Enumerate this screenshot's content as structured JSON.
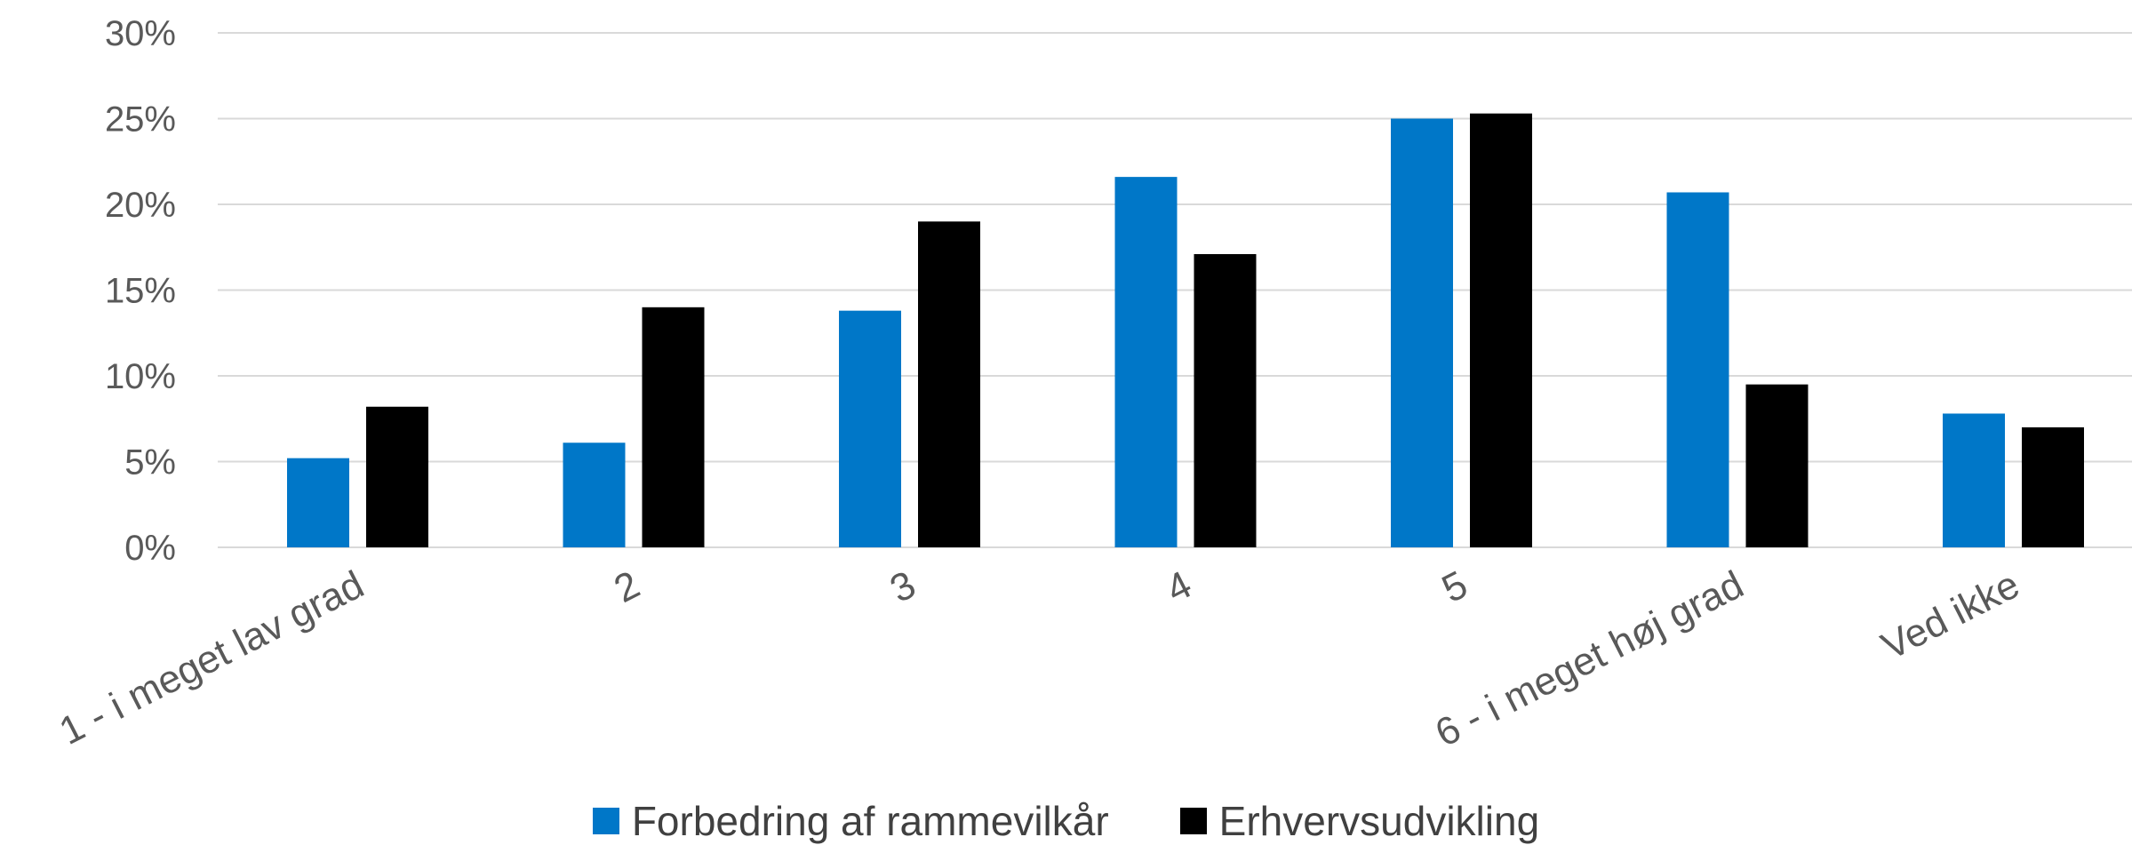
{
  "chart_data": {
    "type": "bar",
    "categories": [
      "1 - i meget lav grad",
      "2",
      "3",
      "4",
      "5",
      "6 - i meget høj grad",
      "Ved ikke"
    ],
    "series": [
      {
        "name": "Forbedring af rammevilkår",
        "color": "#0077C8",
        "values": [
          5.2,
          6.1,
          13.8,
          21.6,
          25.0,
          20.7,
          7.8
        ]
      },
      {
        "name": "Erhvervsudvikling",
        "color": "#000000",
        "values": [
          8.2,
          14.0,
          19.0,
          17.1,
          25.3,
          9.5,
          7.0
        ]
      }
    ],
    "yticks": [
      "0%",
      "5%",
      "10%",
      "15%",
      "20%",
      "25%",
      "30%"
    ],
    "ylim": [
      0,
      30
    ],
    "grid": true,
    "legend": "bottom"
  }
}
